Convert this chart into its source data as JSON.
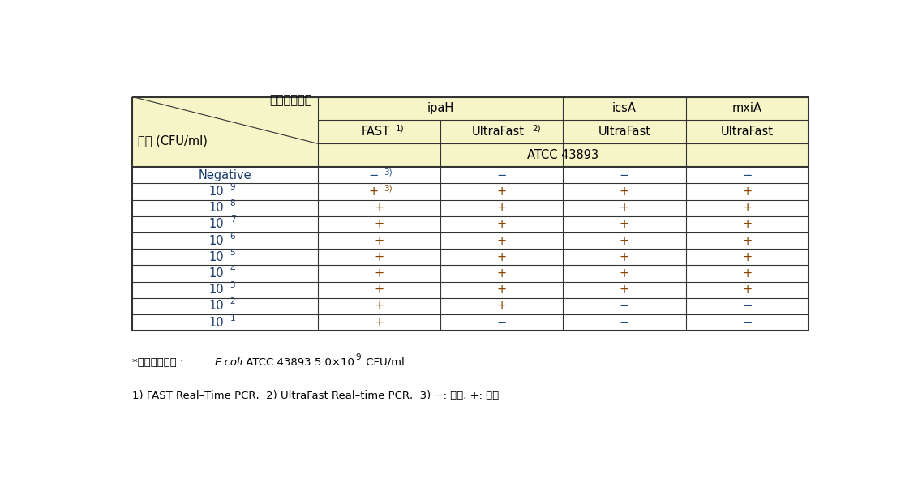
{
  "header_bg": "#f5f5c8",
  "cell_bg": "#ffffff",
  "border_color": "#333333",
  "header_diagonal_top": "병원성유전자",
  "header_diagonal_bottom": "농도 (CFU/ml)",
  "atcc_label": "ATCC 43893",
  "rows": [
    {
      "conc": "Negative",
      "conc_exp": "",
      "fast": "-3",
      "ultrafast": "-",
      "icsa": "-",
      "mxia": "-"
    },
    {
      "conc": "10",
      "conc_exp": "9",
      "fast": "+3",
      "ultrafast": "+",
      "icsa": "+",
      "mxia": "+"
    },
    {
      "conc": "10",
      "conc_exp": "8",
      "fast": "+",
      "ultrafast": "+",
      "icsa": "+",
      "mxia": "+"
    },
    {
      "conc": "10",
      "conc_exp": "7",
      "fast": "+",
      "ultrafast": "+",
      "icsa": "+",
      "mxia": "+"
    },
    {
      "conc": "10",
      "conc_exp": "6",
      "fast": "+",
      "ultrafast": "+",
      "icsa": "+",
      "mxia": "+"
    },
    {
      "conc": "10",
      "conc_exp": "5",
      "fast": "+",
      "ultrafast": "+",
      "icsa": "+",
      "mxia": "+"
    },
    {
      "conc": "10",
      "conc_exp": "4",
      "fast": "+",
      "ultrafast": "+",
      "icsa": "+",
      "mxia": "+"
    },
    {
      "conc": "10",
      "conc_exp": "3",
      "fast": "+",
      "ultrafast": "+",
      "icsa": "+",
      "mxia": "+"
    },
    {
      "conc": "10",
      "conc_exp": "2",
      "fast": "+",
      "ultrafast": "+",
      "icsa": "-",
      "mxia": "-"
    },
    {
      "conc": "10",
      "conc_exp": "1",
      "fast": "+",
      "ultrafast": "-",
      "icsa": "-",
      "mxia": "-"
    }
  ],
  "plus_color": "#8b4500",
  "minus_color": "#1a4a7a",
  "conc_color": "#1a3a6b",
  "footnote1_prefix": "*초기표준균수 : ",
  "footnote1_italic": "E.coli",
  "footnote1_rest": " ATCC 43893 5.0×10",
  "footnote1_exp": "9",
  "footnote1_end": " CFU/ml",
  "footnote2": "1) FAST Real–Time PCR,  2) UltraFast Real–time PCR,  3) −: 음성, +: 양성"
}
